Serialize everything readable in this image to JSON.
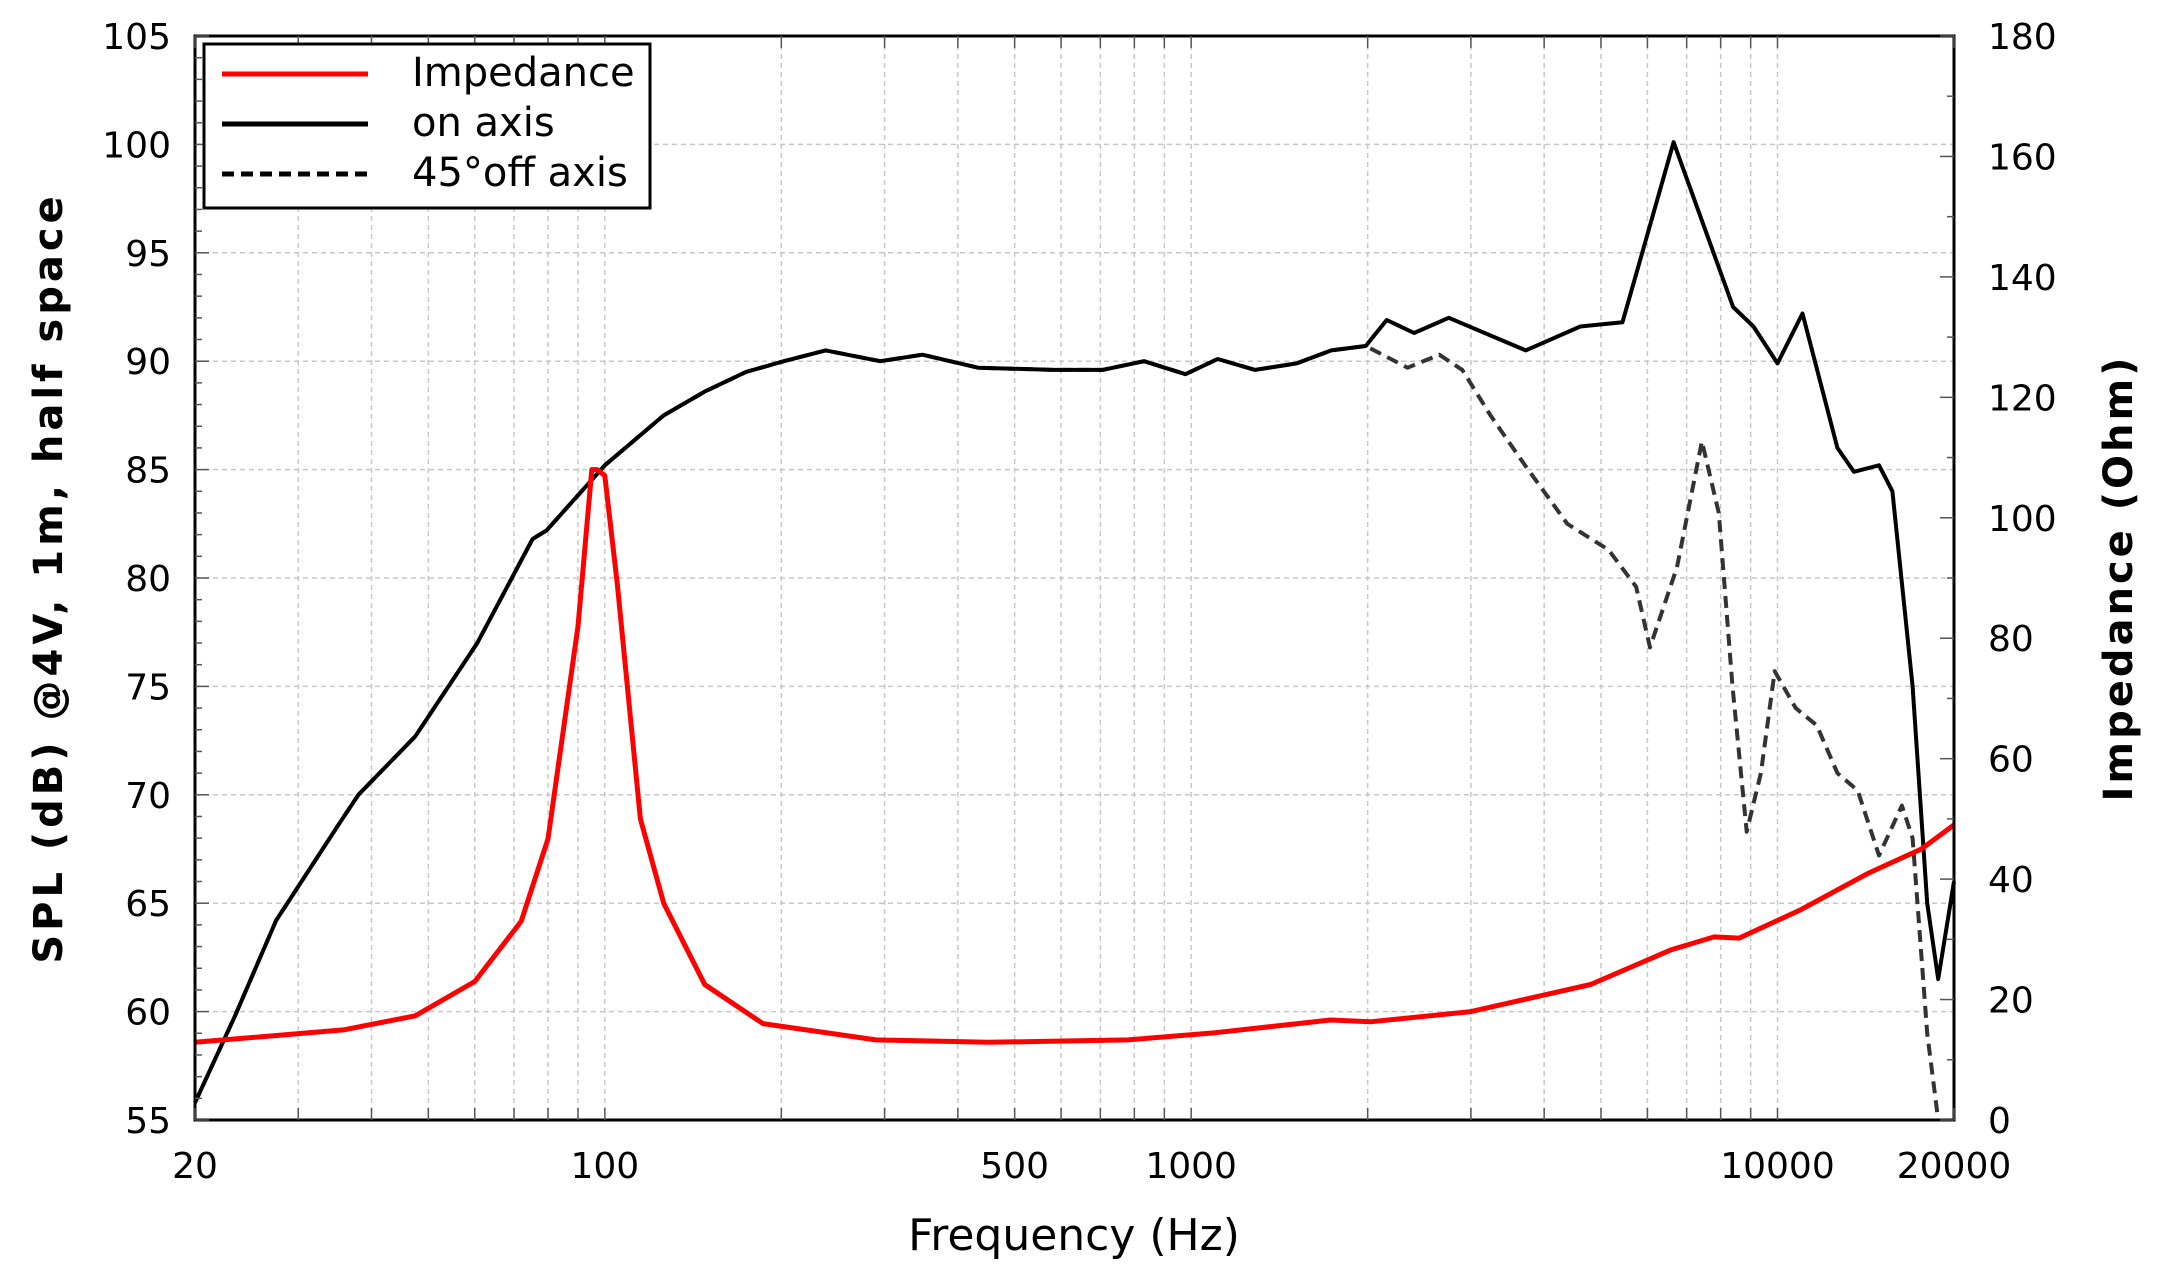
{
  "chart_data": {
    "type": "line",
    "xlabel": "Frequency (Hz)",
    "ylabel": "SPL (dB) @4V, 1m, half space",
    "y2label": "Impedance (Ohm)",
    "xscale": "log",
    "xlim": [
      20,
      20000
    ],
    "ylim": [
      55,
      105
    ],
    "y2lim": [
      0,
      180
    ],
    "grid": true,
    "legend_position": "top-left",
    "xticks": [
      20,
      100,
      500,
      1000,
      10000,
      20000
    ],
    "xtick_labels": [
      "20",
      "100",
      "500",
      "1000",
      "10000",
      "20000"
    ],
    "yticks": [
      "55",
      "60",
      "65",
      "70",
      "75",
      "80",
      "85",
      "90",
      "95",
      "100",
      "105"
    ],
    "y2ticks": [
      "0",
      "20",
      "40",
      "60",
      "80",
      "100",
      "120",
      "140",
      "160",
      "180"
    ],
    "series": [
      {
        "name": "Impedance",
        "axis": "right",
        "color": "#ff0000",
        "style": "solid",
        "x": [
          20,
          36,
          47.5,
          60,
          72,
          80,
          90,
          95,
          97,
          100,
          105,
          115,
          126,
          148,
          186,
          290,
          450,
          780,
          1100,
          1730,
          2020,
          3000,
          4800,
          6600,
          7800,
          8600,
          10900,
          14300,
          17600,
          20000
        ],
        "y": [
          12.9,
          15,
          17.3,
          23,
          33,
          46.7,
          82,
          108,
          108,
          107,
          89,
          50,
          36,
          22.5,
          16,
          13.3,
          12.9,
          13.3,
          14.5,
          16.6,
          16.3,
          18,
          22.5,
          28.3,
          30.4,
          30.2,
          34.8,
          41,
          45,
          49
        ]
      },
      {
        "name": "on axis",
        "axis": "left",
        "color": "#000000",
        "style": "solid",
        "x": [
          20,
          23.4,
          27.5,
          35.1,
          38,
          47.5,
          60.6,
          75.3,
          79.6,
          100,
          126,
          148,
          174,
          202,
          238,
          295,
          348,
          433,
          583,
          706,
          831,
          978,
          1110,
          1285,
          1513,
          1734,
          1985,
          2155,
          2400,
          2750,
          3720,
          4610,
          5440,
          6650,
          8400,
          9100,
          10000,
          11030,
          12650,
          13500,
          14900,
          15700,
          17000,
          18000,
          18800,
          20000
        ],
        "y": [
          55.8,
          59.8,
          64.2,
          68.6,
          70,
          72.7,
          77,
          81.8,
          82.2,
          85.2,
          87.5,
          88.6,
          89.5,
          90,
          90.5,
          90,
          90.3,
          89.7,
          89.6,
          89.6,
          90,
          89.4,
          90.1,
          89.6,
          89.9,
          90.5,
          90.7,
          91.9,
          91.3,
          92,
          90.5,
          91.6,
          91.8,
          100.1,
          92.5,
          91.6,
          89.9,
          92.2,
          86,
          84.9,
          85.2,
          84,
          75,
          65,
          61.5,
          66
        ]
      },
      {
        "name": "45°off axis",
        "axis": "left",
        "color": "#000000",
        "style": "dashed",
        "x": [
          20,
          23.4,
          27.5,
          35.1,
          38,
          47.5,
          60.6,
          75.3,
          79.6,
          100,
          126,
          148,
          174,
          202,
          238,
          295,
          348,
          433,
          583,
          706,
          831,
          978,
          1110,
          1285,
          1513,
          1734,
          1985,
          2340,
          2650,
          2900,
          3240,
          3710,
          4380,
          5150,
          5740,
          6060,
          6740,
          7430,
          7940,
          8380,
          8860,
          9370,
          9890,
          10740,
          11670,
          12650,
          13700,
          14900,
          16300,
          17000,
          18000,
          18800
        ],
        "y": [
          55.8,
          59.8,
          64.2,
          68.6,
          70,
          72.7,
          77,
          81.8,
          82.2,
          85.2,
          87.5,
          88.6,
          89.5,
          90,
          90.5,
          90,
          90.3,
          89.7,
          89.6,
          89.6,
          90,
          89.4,
          90.1,
          89.6,
          89.9,
          90.5,
          90.7,
          89.7,
          90.3,
          89.6,
          87.5,
          85.2,
          82.5,
          81.3,
          79.6,
          76.8,
          80.5,
          86.3,
          83,
          75,
          68.3,
          71,
          75.7,
          74,
          73.2,
          71,
          70.2,
          67.2,
          69.5,
          68,
          59,
          55
        ]
      }
    ]
  }
}
